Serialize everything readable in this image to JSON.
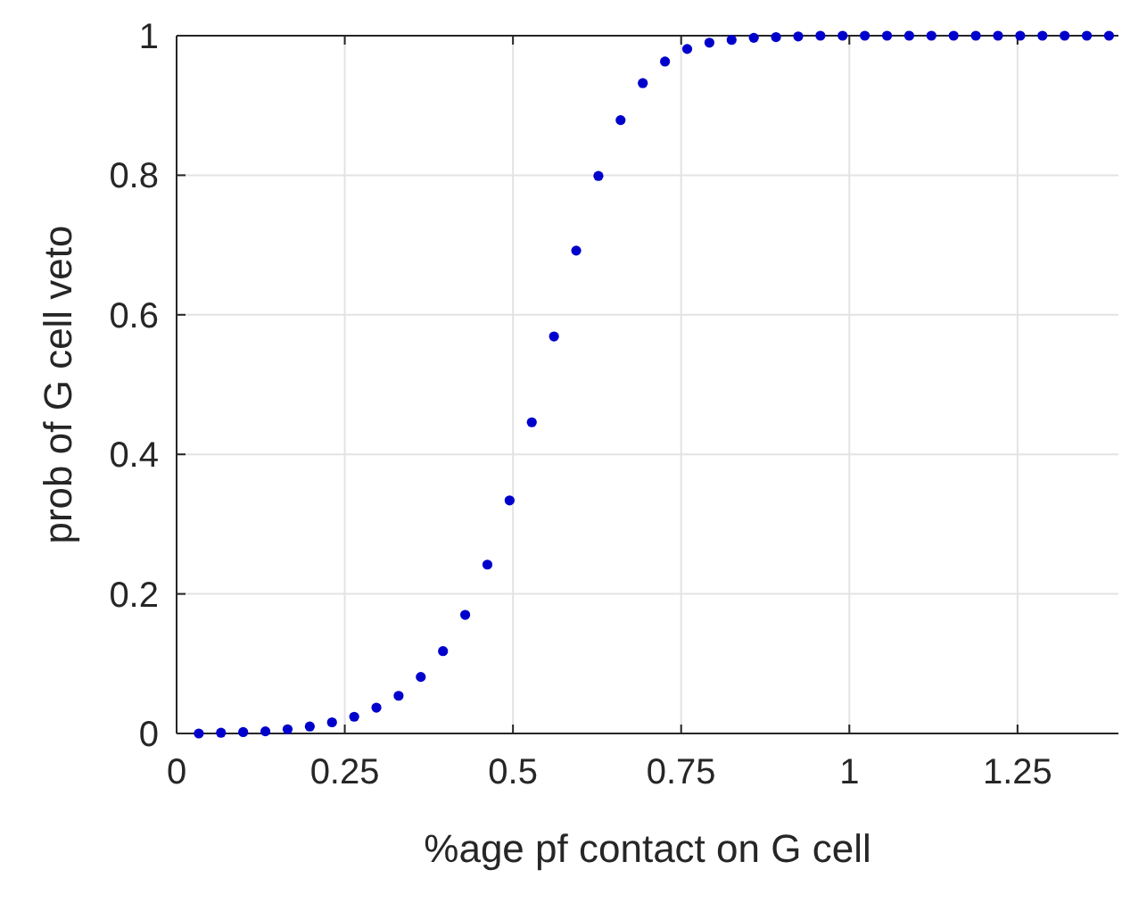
{
  "chart_data": {
    "type": "scatter",
    "xlabel": "%age pf contact on G cell",
    "ylabel": "prob of G cell veto",
    "x": [
      0.033,
      0.066,
      0.099,
      0.132,
      0.165,
      0.198,
      0.231,
      0.264,
      0.297,
      0.33,
      0.363,
      0.396,
      0.429,
      0.462,
      0.495,
      0.528,
      0.561,
      0.594,
      0.627,
      0.66,
      0.693,
      0.726,
      0.759,
      0.792,
      0.825,
      0.858,
      0.891,
      0.924,
      0.957,
      0.99,
      1.023,
      1.056,
      1.089,
      1.122,
      1.155,
      1.188,
      1.221,
      1.254,
      1.287,
      1.32,
      1.353,
      1.386
    ],
    "series": [
      {
        "color": "#0000cc",
        "values": [
          0,
          0.001,
          0.002,
          0.003,
          0.006,
          0.01,
          0.016,
          0.024,
          0.037,
          0.054,
          0.081,
          0.118,
          0.17,
          0.242,
          0.334,
          0.446,
          0.569,
          0.692,
          0.799,
          0.879,
          0.932,
          0.963,
          0.981,
          0.99,
          0.994,
          0.997,
          0.998,
          0.999,
          1,
          1,
          1,
          1,
          1,
          1,
          1,
          1,
          1,
          1,
          1,
          1,
          1,
          1
        ]
      }
    ],
    "xlim": [
      0,
      1.4
    ],
    "xticks": [
      0,
      0.25,
      0.5,
      0.75,
      1,
      1.25
    ],
    "ylim": [
      0,
      1
    ],
    "yticks": [
      0,
      0.2,
      0.4,
      0.6,
      0.8,
      1
    ],
    "grid": true,
    "marker": "circle"
  }
}
